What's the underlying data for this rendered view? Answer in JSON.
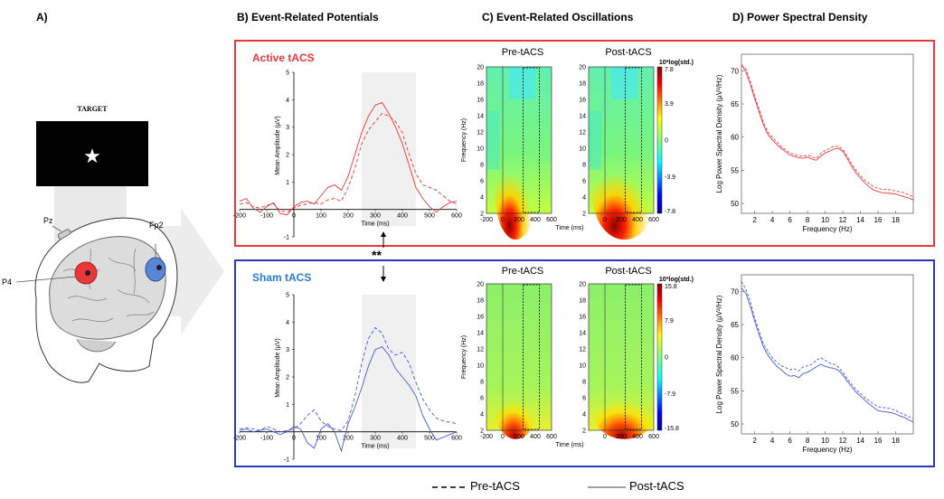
{
  "panels": {
    "a": "A)",
    "b": "B) Event-Related Potentials",
    "c": "C) Event-Related Oscillations",
    "d": "D) Power Spectral Density"
  },
  "schematic": {
    "target_label": "TARGET",
    "electrodes": [
      "Pz",
      "P4",
      "Fp2"
    ],
    "colors": {
      "p4": "#e8383c",
      "fp2": "#5b86d6"
    }
  },
  "conditions": {
    "active": {
      "label": "Active tACS",
      "color": "#e8383c"
    },
    "sham": {
      "label": "Sham tACS",
      "color": "#2a3ab8"
    }
  },
  "significance": "**",
  "ero": {
    "pre_label": "Pre-tACS",
    "post_label": "Post-tACS",
    "colorbar_title": "10*log(std.)",
    "active_colorbar": [
      "7.8",
      "3.9",
      "0",
      "-3.9",
      "-7.8"
    ],
    "sham_colorbar": [
      "15.8",
      "7.9",
      "0",
      "-7.9",
      "-15.8"
    ],
    "ylabel": "Frequency (Hz)",
    "xlabel": "Time (ms)"
  },
  "legend": {
    "pre": "Pre-tACS",
    "post": "Post-tACS"
  },
  "chart_data": [
    {
      "type": "line",
      "panel": "B-active",
      "xlabel": "Time (ms)",
      "ylabel": "Mean Amplitude (µV)",
      "xlim": [
        -200,
        600
      ],
      "ylim": [
        -1,
        5
      ],
      "xticks": [
        "-200",
        "-100",
        "0",
        "100",
        "200",
        "300",
        "400",
        "500",
        "600"
      ],
      "yticks": [
        "5",
        "4",
        "3",
        "2",
        "1",
        "0",
        "-1"
      ],
      "shaded_window": [
        250,
        450
      ],
      "x": [
        -200,
        -175,
        -150,
        -125,
        -100,
        -75,
        -50,
        -25,
        0,
        25,
        50,
        75,
        100,
        125,
        150,
        175,
        200,
        225,
        250,
        275,
        300,
        325,
        350,
        375,
        400,
        425,
        450,
        475,
        500,
        525,
        550,
        575,
        600
      ],
      "series": [
        {
          "name": "Pre-tACS",
          "style": "dashed",
          "values": [
            0.2,
            0.25,
            0.1,
            0.05,
            0.15,
            0.2,
            -0.05,
            -0.1,
            0.05,
            0.15,
            0.2,
            0.25,
            0.2,
            0.35,
            0.4,
            0.3,
            0.8,
            1.5,
            2.4,
            2.9,
            3.2,
            3.5,
            3.4,
            3.2,
            2.8,
            2.0,
            1.3,
            0.9,
            0.8,
            0.7,
            0.5,
            0.3,
            0.2
          ]
        },
        {
          "name": "Post-tACS",
          "style": "solid",
          "values": [
            0.3,
            0.4,
            0.05,
            -0.1,
            0.1,
            0.25,
            -0.15,
            -0.2,
            0.1,
            0.25,
            0.3,
            0.2,
            0.5,
            0.8,
            0.9,
            0.7,
            1.2,
            2.0,
            2.8,
            3.4,
            3.8,
            3.9,
            3.5,
            3.0,
            2.4,
            1.6,
            0.8,
            0.4,
            0.1,
            -0.1,
            0.1,
            0.25,
            0.3
          ]
        }
      ]
    },
    {
      "type": "line",
      "panel": "B-sham",
      "xlabel": "Time (ms)",
      "ylabel": "Mean Amplitude (µV)",
      "xlim": [
        -200,
        600
      ],
      "ylim": [
        -1,
        5
      ],
      "xticks": [
        "-200",
        "-100",
        "0",
        "100",
        "200",
        "300",
        "400",
        "500",
        "600"
      ],
      "yticks": [
        "5",
        "4",
        "3",
        "2",
        "1",
        "0",
        "-1"
      ],
      "shaded_window": [
        250,
        450
      ],
      "x": [
        -200,
        -175,
        -150,
        -125,
        -100,
        -75,
        -50,
        -25,
        0,
        25,
        50,
        75,
        100,
        125,
        150,
        175,
        200,
        225,
        250,
        275,
        300,
        325,
        350,
        375,
        400,
        425,
        450,
        475,
        500,
        525,
        550,
        575,
        600
      ],
      "series": [
        {
          "name": "Pre-tACS",
          "style": "dashed",
          "values": [
            0.1,
            0.15,
            0.1,
            0.05,
            0.2,
            0.1,
            0.0,
            0.05,
            0.1,
            0.3,
            0.6,
            0.8,
            0.4,
            0.2,
            0.1,
            0.05,
            0.4,
            1.3,
            2.5,
            3.4,
            3.8,
            3.6,
            3.0,
            2.8,
            2.9,
            2.5,
            1.8,
            1.2,
            0.8,
            0.5,
            0.4,
            0.35,
            0.3
          ]
        },
        {
          "name": "Post-tACS",
          "style": "solid",
          "values": [
            0.05,
            0.1,
            0.0,
            0.05,
            0.1,
            0.0,
            -0.1,
            0.0,
            0.2,
            0.1,
            -0.4,
            -0.6,
            0.1,
            0.3,
            0.0,
            -0.7,
            0.3,
            0.9,
            1.6,
            2.4,
            3.0,
            3.1,
            2.8,
            2.3,
            2.0,
            1.7,
            1.3,
            0.6,
            0.1,
            -0.3,
            -0.2,
            -0.1,
            0.0
          ]
        }
      ]
    },
    {
      "type": "line",
      "panel": "D-active",
      "xlabel": "Frequency (Hz)",
      "ylabel": "Log Power Spectral Density (µV²/Hz)",
      "xlim": [
        0.5,
        20
      ],
      "ylim": [
        48.5,
        72.5
      ],
      "xticks": [
        "2",
        "4",
        "6",
        "8",
        "10",
        "12",
        "14",
        "16",
        "18"
      ],
      "yticks": [
        "70",
        "65",
        "60",
        "55",
        "50"
      ],
      "x": [
        0.5,
        1,
        1.5,
        2,
        2.5,
        3,
        3.5,
        4,
        4.5,
        5,
        5.5,
        6,
        6.5,
        7,
        7.5,
        8,
        8.5,
        9,
        9.5,
        10,
        10.5,
        11,
        11.5,
        12,
        12.5,
        13,
        13.5,
        14,
        14.5,
        15,
        15.5,
        16,
        16.5,
        17,
        17.5,
        18,
        18.5,
        19,
        19.5,
        20
      ],
      "series": [
        {
          "name": "Pre-tACS",
          "style": "dashed",
          "values": [
            70.8,
            70.3,
            68.5,
            66.2,
            64.3,
            62.2,
            60.8,
            60.0,
            59.3,
            58.6,
            58.1,
            57.6,
            57.4,
            57.2,
            57.1,
            57.3,
            57.0,
            56.8,
            57.5,
            58.0,
            58.3,
            58.6,
            58.6,
            58.2,
            57.1,
            56.0,
            55.0,
            54.2,
            53.5,
            53.0,
            52.5,
            52.3,
            52.1,
            52.1,
            52.0,
            51.9,
            51.7,
            51.6,
            51.3,
            51.0
          ]
        },
        {
          "name": "Post-tACS",
          "style": "solid",
          "values": [
            71.0,
            69.8,
            68.0,
            65.8,
            63.8,
            61.8,
            60.4,
            59.6,
            58.9,
            58.3,
            57.8,
            57.3,
            57.1,
            56.9,
            56.8,
            57.0,
            56.7,
            56.5,
            57.1,
            57.6,
            57.9,
            58.2,
            58.3,
            57.9,
            56.8,
            55.6,
            54.6,
            53.8,
            53.1,
            52.5,
            52.0,
            51.8,
            51.6,
            51.6,
            51.5,
            51.4,
            51.2,
            51.0,
            50.8,
            50.5
          ]
        }
      ]
    },
    {
      "type": "line",
      "panel": "D-sham",
      "xlabel": "Frequency (Hz)",
      "ylabel": "Log Power Spectral Density (µV²/Hz)",
      "xlim": [
        0.5,
        20
      ],
      "ylim": [
        48.5,
        72.5
      ],
      "xticks": [
        "2",
        "4",
        "6",
        "8",
        "10",
        "12",
        "14",
        "16",
        "18"
      ],
      "yticks": [
        "70",
        "65",
        "60",
        "55",
        "50"
      ],
      "x": [
        0.5,
        1,
        1.5,
        2,
        2.5,
        3,
        3.5,
        4,
        4.5,
        5,
        5.5,
        6,
        6.5,
        7,
        7.5,
        8,
        8.5,
        9,
        9.5,
        10,
        10.5,
        11,
        11.5,
        12,
        12.5,
        13,
        13.5,
        14,
        14.5,
        15,
        15.5,
        16,
        16.5,
        17,
        17.5,
        18,
        18.5,
        19,
        19.5,
        20
      ],
      "series": [
        {
          "name": "Pre-tACS",
          "style": "dashed",
          "values": [
            71.5,
            70.3,
            68.5,
            66.0,
            64.0,
            62.0,
            61.0,
            60.0,
            59.3,
            58.8,
            58.5,
            58.2,
            58.3,
            58.0,
            58.6,
            58.8,
            59.0,
            59.6,
            60.0,
            59.6,
            59.2,
            59.0,
            58.6,
            57.8,
            56.9,
            56.0,
            55.2,
            54.6,
            54.0,
            53.5,
            53.0,
            52.6,
            52.5,
            52.4,
            52.3,
            52.0,
            51.7,
            51.4,
            51.1,
            50.8
          ]
        },
        {
          "name": "Post-tACS",
          "style": "solid",
          "values": [
            70.5,
            69.7,
            67.8,
            65.5,
            63.5,
            61.6,
            60.4,
            59.5,
            58.7,
            58.2,
            57.6,
            57.2,
            57.3,
            57.0,
            57.6,
            57.8,
            58.2,
            58.6,
            59.0,
            58.7,
            58.5,
            58.4,
            58.1,
            57.4,
            56.5,
            55.6,
            54.8,
            54.2,
            53.6,
            53.0,
            52.5,
            52.0,
            51.9,
            51.8,
            51.7,
            51.5,
            51.2,
            51.0,
            50.6,
            50.3
          ]
        }
      ]
    }
  ]
}
